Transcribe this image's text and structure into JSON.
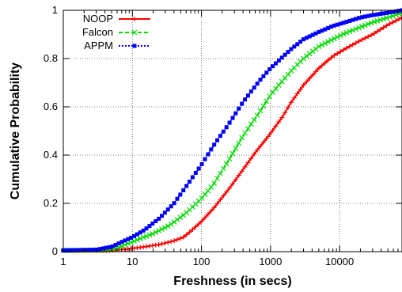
{
  "chart_data": {
    "type": "line",
    "title": "",
    "xlabel": "Freshness (in secs)",
    "ylabel": "Cumulative Probability",
    "x_scale": "log",
    "xlim": [
      1,
      80000
    ],
    "ylim": [
      0,
      1
    ],
    "x_ticks": [
      1,
      10,
      100,
      1000,
      10000
    ],
    "x_tick_labels": [
      "1",
      "10",
      "100",
      "1000",
      "10000"
    ],
    "y_ticks": [
      0,
      0.2,
      0.4,
      0.6,
      0.8,
      1
    ],
    "y_tick_labels": [
      "0",
      "0.2",
      "0.4",
      "0.6",
      "0.8",
      "1"
    ],
    "grid": true,
    "legend_position": "top-left",
    "series": [
      {
        "name": "NOOP",
        "color": "#ff0000",
        "line_style": "solid",
        "marker": "plus",
        "points": [
          [
            1,
            0.005
          ],
          [
            5,
            0.005
          ],
          [
            8,
            0.01
          ],
          [
            15,
            0.02
          ],
          [
            25,
            0.03
          ],
          [
            40,
            0.045
          ],
          [
            55,
            0.06
          ],
          [
            70,
            0.085
          ],
          [
            100,
            0.125
          ],
          [
            150,
            0.18
          ],
          [
            250,
            0.26
          ],
          [
            400,
            0.34
          ],
          [
            600,
            0.41
          ],
          [
            1000,
            0.49
          ],
          [
            1500,
            0.56
          ],
          [
            2000,
            0.62
          ],
          [
            3000,
            0.69
          ],
          [
            5000,
            0.76
          ],
          [
            8000,
            0.81
          ],
          [
            12000,
            0.84
          ],
          [
            20000,
            0.875
          ],
          [
            30000,
            0.9
          ],
          [
            50000,
            0.94
          ],
          [
            80000,
            0.97
          ]
        ]
      },
      {
        "name": "Falcon",
        "color": "#00dd00",
        "line_style": "dashed",
        "marker": "x",
        "points": [
          [
            1,
            0.005
          ],
          [
            4,
            0.007
          ],
          [
            6,
            0.015
          ],
          [
            8,
            0.03
          ],
          [
            12,
            0.05
          ],
          [
            20,
            0.075
          ],
          [
            35,
            0.11
          ],
          [
            60,
            0.16
          ],
          [
            100,
            0.22
          ],
          [
            150,
            0.28
          ],
          [
            250,
            0.38
          ],
          [
            400,
            0.48
          ],
          [
            700,
            0.58
          ],
          [
            1000,
            0.65
          ],
          [
            2000,
            0.75
          ],
          [
            3000,
            0.8
          ],
          [
            5000,
            0.85
          ],
          [
            8000,
            0.88
          ],
          [
            12000,
            0.905
          ],
          [
            20000,
            0.93
          ],
          [
            30000,
            0.95
          ],
          [
            50000,
            0.97
          ],
          [
            80000,
            0.99
          ]
        ]
      },
      {
        "name": "APPM",
        "color": "#0000ff",
        "line_style": "dotted",
        "marker": "square",
        "points": [
          [
            1,
            0.005
          ],
          [
            3,
            0.008
          ],
          [
            5,
            0.02
          ],
          [
            7,
            0.04
          ],
          [
            10,
            0.06
          ],
          [
            15,
            0.09
          ],
          [
            25,
            0.14
          ],
          [
            40,
            0.2
          ],
          [
            60,
            0.27
          ],
          [
            100,
            0.36
          ],
          [
            150,
            0.44
          ],
          [
            250,
            0.53
          ],
          [
            400,
            0.62
          ],
          [
            700,
            0.71
          ],
          [
            1000,
            0.76
          ],
          [
            2000,
            0.84
          ],
          [
            3000,
            0.88
          ],
          [
            5000,
            0.91
          ],
          [
            8000,
            0.935
          ],
          [
            12000,
            0.95
          ],
          [
            20000,
            0.97
          ],
          [
            30000,
            0.98
          ],
          [
            50000,
            0.99
          ],
          [
            80000,
            1.0
          ]
        ]
      }
    ]
  }
}
